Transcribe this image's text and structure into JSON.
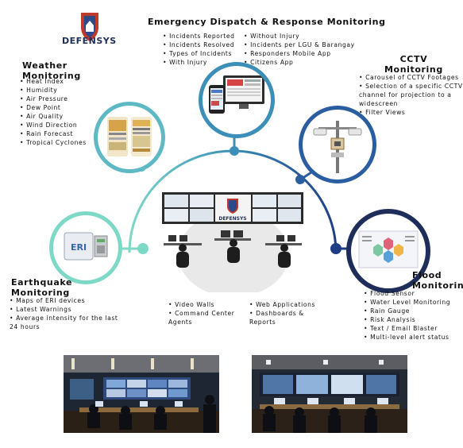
{
  "brand": {
    "name": "DEFENSYS"
  },
  "colors": {
    "arc_start": "#7dd8c6",
    "arc_end": "#1f3d86",
    "navy": "#1f2d5a"
  },
  "sections": {
    "dispatch": {
      "title": "Emergency Dispatch & Response Monitoring",
      "col1": [
        "Incidents Reported",
        "Incidents Resolved",
        "Types of Incidents",
        "With Injury"
      ],
      "col2": [
        "Without Injury",
        "Incidents per LGU & Barangay",
        "Responders Mobile App",
        "Citizens App"
      ]
    },
    "weather": {
      "title_line1": "Weather",
      "title_line2": "Monitoring",
      "items": [
        "Heat Index",
        "Humidity",
        "Air Pressure",
        "Dew Point",
        "Air Quality",
        "Wind Direction",
        "Rain Forecast",
        "Tropical Cyclones"
      ]
    },
    "cctv": {
      "title_line1": "CCTV",
      "title_line2": "Monitoring",
      "items": [
        "Carousel of CCTV Footages",
        "Selection of a specific CCTV channel for projection to a widescreen",
        "Filter Views"
      ]
    },
    "earthquake": {
      "title_line1": "Earthquake",
      "title_line2": "Monitoring",
      "items": [
        "Maps of ERI devices",
        "Latest Warnings",
        "Average intensity for the last 24 hours"
      ]
    },
    "flood": {
      "title_line1": "Flood",
      "title_line2": "Monitoring",
      "items": [
        "Flood Sensor",
        "Water Level Monitoring",
        "Rain Gauge",
        "Risk Analysis",
        "Text / Email Blaster",
        "Multi-level alert status"
      ]
    },
    "center": {
      "col1": [
        "Video Walls",
        "Command Center Agents"
      ],
      "col2": [
        "Web Applications",
        "Dashboards & Reports"
      ]
    }
  },
  "device_label": "ERI"
}
